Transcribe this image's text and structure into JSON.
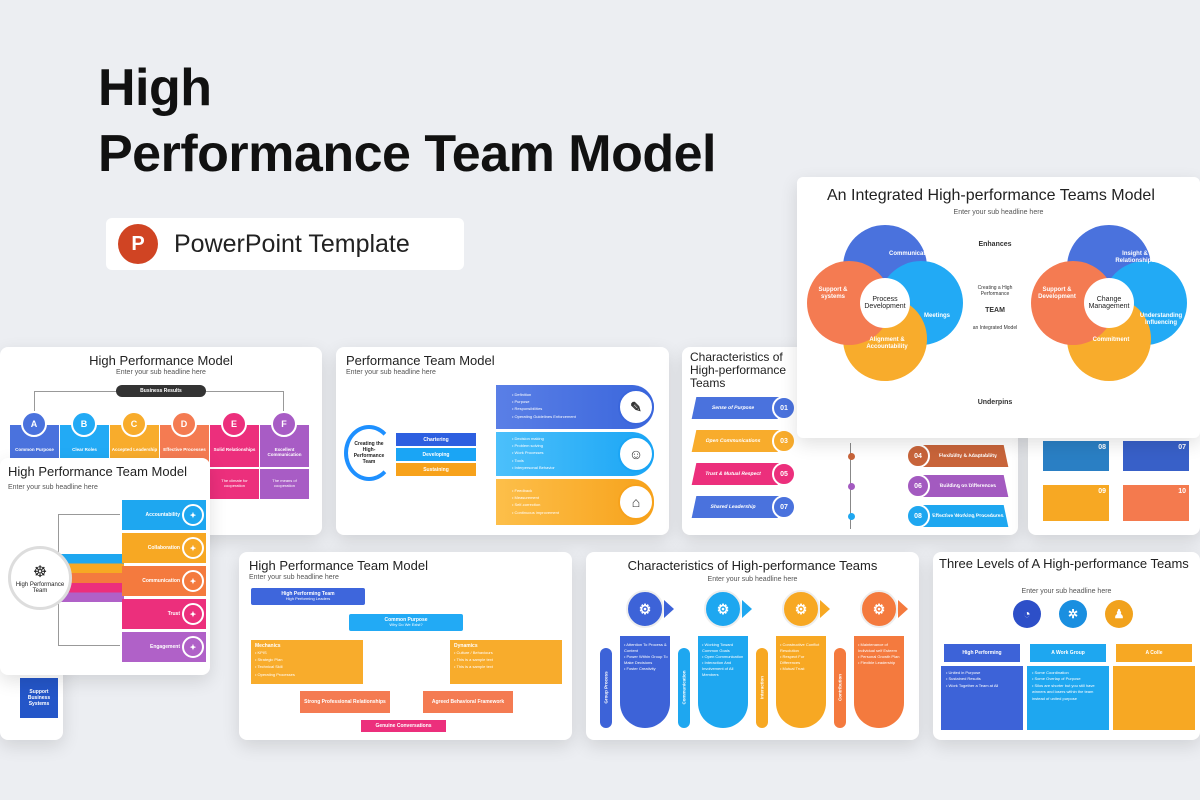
{
  "hero": {
    "title_line1": "High",
    "title_line2": "Performance Team Model",
    "badge_label": "PowerPoint Template",
    "badge_icon": "powerpoint-logo",
    "accent": "#d04423"
  },
  "integrated": {
    "title": "An Integrated High-performance Teams Model",
    "subtitle": "Enter your sub headline here",
    "left_center": "Process Development",
    "left_petals": [
      "Communication",
      "Meetings",
      "Alignment & Accountability",
      "Support & systems"
    ],
    "middle": [
      "Enhances",
      "Creating a High Performance",
      "TEAM",
      "an Integrated Model",
      "Underpins"
    ],
    "right_center": "Change Management",
    "right_petals": [
      "Insight & Relationships",
      "Understanding Influencing",
      "Commitment",
      "Support & Development"
    ]
  },
  "hpm": {
    "title": "High Performance Model",
    "subtitle": "Enter your sub headline here",
    "top": "Business Results",
    "items": [
      {
        "letter": "A",
        "label": "Common Purpose"
      },
      {
        "letter": "B",
        "label": "Clear Roles"
      },
      {
        "letter": "C",
        "label": "Accepted Leadership"
      },
      {
        "letter": "D",
        "label": "Effective Processes"
      },
      {
        "letter": "E",
        "label": "Solid Relationships",
        "desc": "The climate for cooperation"
      },
      {
        "letter": "F",
        "label": "Excellent Communication",
        "desc": "The means of cooperation"
      }
    ]
  },
  "ptm": {
    "title": "Performance Team Model",
    "subtitle": "Enter your sub headline here",
    "center": "Creating the High-Performance Team",
    "stages": [
      {
        "label": "Chartering",
        "bullets": [
          "Definition",
          "Purpose",
          "Responsibilities",
          "Operating Guidelines Enforcement"
        ]
      },
      {
        "label": "Developing",
        "bullets": [
          "Decision making",
          "Problem solving",
          "Work Processes",
          "Tools",
          "Interpersonal Behavior"
        ]
      },
      {
        "label": "Sustaining",
        "bullets": [
          "Feedback",
          "Measurement",
          "Self-correction",
          "Continuous improvement"
        ]
      }
    ]
  },
  "chars": {
    "title": "Characteristics of High-performance Teams",
    "left": [
      {
        "num": "01",
        "label": "Sense of Purpose"
      },
      {
        "num": "03",
        "label": "Open Communications"
      },
      {
        "num": "05",
        "label": "Trust & Mutual Respect"
      },
      {
        "num": "07",
        "label": "Shared Leadership"
      }
    ],
    "right": [
      {
        "num": "04",
        "label": "Flexibility & Adaptability"
      },
      {
        "num": "06",
        "label": "Building on Differences"
      },
      {
        "num": "08",
        "label": "Effective Working Procedures"
      }
    ]
  },
  "steps": {
    "nums": [
      "08",
      "07",
      "09",
      "10"
    ]
  },
  "front": {
    "title": "High Performance Team Model",
    "subtitle": "Enter your sub headline here",
    "center": "High Performance Team",
    "items": [
      "Accountability",
      "Collaboration",
      "Communication",
      "Trust",
      "Engagement"
    ]
  },
  "back": {
    "box": "Support Business Systems"
  },
  "flow": {
    "title": "High Performance Team Model",
    "subtitle": "Enter your sub headline here",
    "top": {
      "title": "High Performing Team",
      "sub": "High Performing Leaders"
    },
    "purpose": {
      "title": "Common Purpose",
      "sub": "Why Do We Exist?"
    },
    "mechanics": {
      "title": "Mechanics",
      "bullets": [
        "KPIS",
        "Strategic Plan",
        "Technical Skill",
        "Operating Processes"
      ]
    },
    "dynamics": {
      "title": "Dynamics",
      "bullets": [
        "Culture / Behaviours",
        "This is a sample text",
        "This is a sample text"
      ]
    },
    "left_box": "Strong Professional Relationships",
    "right_box": "Agreed Behavioral Framework",
    "bottom": "Genuine Conversations"
  },
  "chars2": {
    "title": "Characteristics of High-performance Teams",
    "subtitle": "Enter your sub headline here",
    "cols": [
      {
        "label": "Group Process",
        "color": "#3d63d8",
        "bullets": [
          "Attention To Process & Content",
          "Power Within Group To Make Decisions",
          "Foster Creativity"
        ]
      },
      {
        "label": "Communication",
        "color": "#1ea7f0",
        "bullets": [
          "Working Toward Common Goals",
          "Open Communication",
          "Interaction And Involvement of All Members"
        ]
      },
      {
        "label": "Interaction",
        "color": "#f7a823",
        "bullets": [
          "Constructive Conflict Resolution",
          "Respect For Differences",
          "Mutual Trust"
        ]
      },
      {
        "label": "Contribution",
        "color": "#f47a3e",
        "bullets": [
          "Maintenance of Individual self Esteem",
          "Personal Growth Plan",
          "Flexible Leadership"
        ]
      }
    ]
  },
  "levels": {
    "title": "Three Levels of A High-performance Teams",
    "subtitle": "Enter your sub headline here",
    "cols": [
      {
        "label": "High Performing",
        "bullets": [
          "United in Purpose",
          "Sustained Results",
          "Work Together a Team at All"
        ]
      },
      {
        "label": "A Work Group",
        "bullets": [
          "Some Coordination",
          "Some Overlap of Purpose",
          "Silos are shorter but you still have winners and losers within the team instead of united purpose"
        ]
      },
      {
        "label": "A Colle",
        "bullets": []
      }
    ]
  }
}
